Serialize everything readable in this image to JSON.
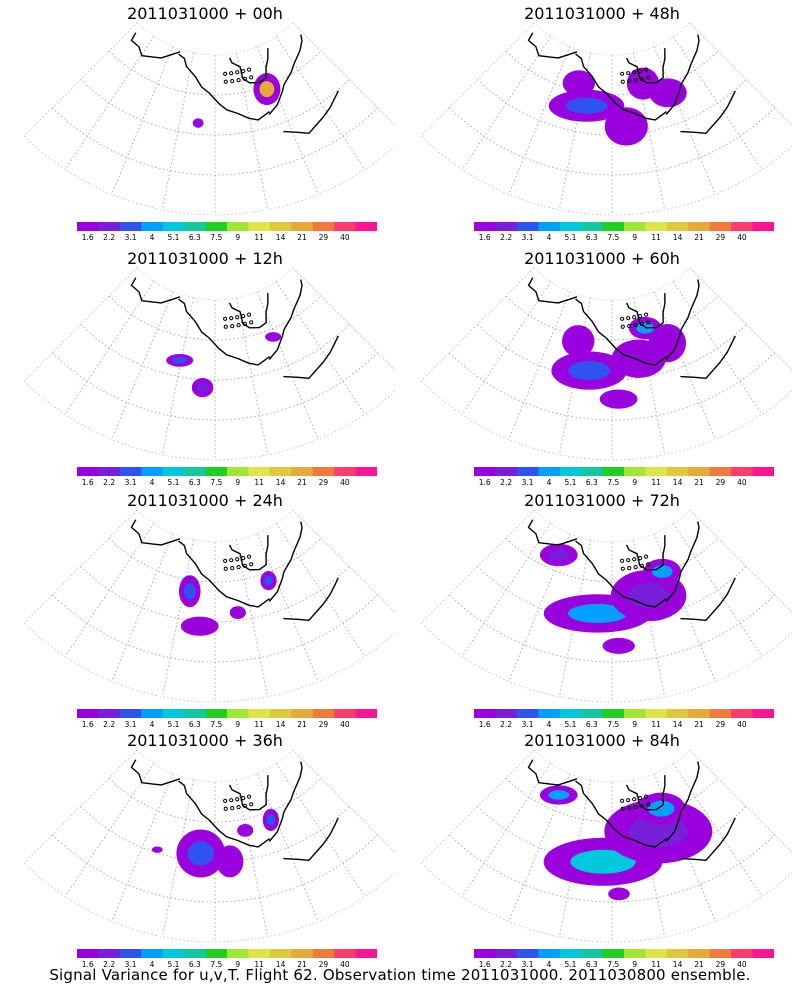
{
  "panels": [
    {
      "title": "2011031000 + 00h",
      "col": 0,
      "row": 0,
      "blobs": [
        [
          0.44,
          0.43,
          0.02,
          0.03,
          0
        ],
        [
          0.72,
          0.27,
          0.05,
          0.1,
          10
        ]
      ]
    },
    {
      "title": "2011031000 + 48h",
      "col": 1,
      "row": 0,
      "blobs": [
        [
          0.4,
          0.33,
          0.14,
          0.1,
          2
        ],
        [
          0.55,
          0.45,
          0.08,
          0.12,
          0
        ],
        [
          0.35,
          0.2,
          0.06,
          0.08,
          0
        ],
        [
          0.73,
          0.3,
          0.07,
          0.09,
          0
        ],
        [
          0.64,
          0.2,
          0.06,
          0.1,
          0
        ]
      ]
    },
    {
      "title": "2011031000 + 12h",
      "col": 0,
      "row": 1,
      "blobs": [
        [
          0.37,
          0.4,
          0.05,
          0.04,
          2
        ],
        [
          0.46,
          0.55,
          0.04,
          0.06,
          1
        ],
        [
          0.74,
          0.3,
          0.03,
          0.03,
          0
        ]
      ]
    },
    {
      "title": "2011031000 + 60h",
      "col": 1,
      "row": 1,
      "blobs": [
        [
          0.42,
          0.45,
          0.14,
          0.12,
          2
        ],
        [
          0.6,
          0.38,
          0.1,
          0.12,
          0
        ],
        [
          0.36,
          0.28,
          0.06,
          0.1,
          0
        ],
        [
          0.72,
          0.33,
          0.07,
          0.12,
          0
        ],
        [
          0.65,
          0.2,
          0.06,
          0.07,
          3
        ],
        [
          0.52,
          0.62,
          0.07,
          0.06,
          0
        ]
      ]
    },
    {
      "title": "2011031000 + 24h",
      "col": 0,
      "row": 2,
      "blobs": [
        [
          0.4,
          0.32,
          0.04,
          0.1,
          2
        ],
        [
          0.45,
          0.53,
          0.07,
          0.06,
          0
        ],
        [
          0.72,
          0.3,
          0.03,
          0.06,
          2
        ],
        [
          0.58,
          0.45,
          0.03,
          0.04,
          0
        ]
      ]
    },
    {
      "title": "2011031000 + 72h",
      "col": 1,
      "row": 2,
      "blobs": [
        [
          0.45,
          0.45,
          0.2,
          0.12,
          3
        ],
        [
          0.64,
          0.36,
          0.14,
          0.16,
          1
        ],
        [
          0.24,
          0.15,
          0.07,
          0.07,
          1
        ],
        [
          0.72,
          0.24,
          0.07,
          0.08,
          3
        ],
        [
          0.52,
          0.65,
          0.06,
          0.05,
          0
        ]
      ]
    },
    {
      "title": "2011031000 + 36h",
      "col": 0,
      "row": 3,
      "blobs": [
        [
          0.45,
          0.45,
          0.09,
          0.15,
          2
        ],
        [
          0.55,
          0.5,
          0.05,
          0.1,
          0
        ],
        [
          0.73,
          0.3,
          0.03,
          0.07,
          2
        ],
        [
          0.3,
          0.48,
          0.02,
          0.02,
          0
        ],
        [
          0.62,
          0.32,
          0.03,
          0.04,
          0
        ]
      ]
    },
    {
      "title": "2011031000 + 84h",
      "col": 1,
      "row": 3,
      "blobs": [
        [
          0.47,
          0.5,
          0.22,
          0.15,
          4
        ],
        [
          0.68,
          0.35,
          0.2,
          0.2,
          1
        ],
        [
          0.24,
          0.15,
          0.07,
          0.06,
          3
        ],
        [
          0.72,
          0.22,
          0.09,
          0.1,
          3
        ],
        [
          0.52,
          0.7,
          0.04,
          0.04,
          0
        ]
      ]
    }
  ],
  "colorbar": {
    "labels": [
      "1.6",
      "2.2",
      "3.1",
      "4",
      "5.1",
      "6.3",
      "7.5",
      "9",
      "11",
      "14",
      "21",
      "29",
      "40"
    ],
    "colors": [
      "#9900dd",
      "#7a1fd9",
      "#2e53f0",
      "#00a0ff",
      "#00c8dc",
      "#13c7a0",
      "#20d020",
      "#a0e632",
      "#dde646",
      "#e0c83c",
      "#e6aa3a",
      "#f07a3c",
      "#ff3c6e",
      "#ff1496"
    ]
  },
  "footer": "Signal Variance for u,v,T. Flight 62. Observation time 2011031000. 2011030800 ensemble."
}
